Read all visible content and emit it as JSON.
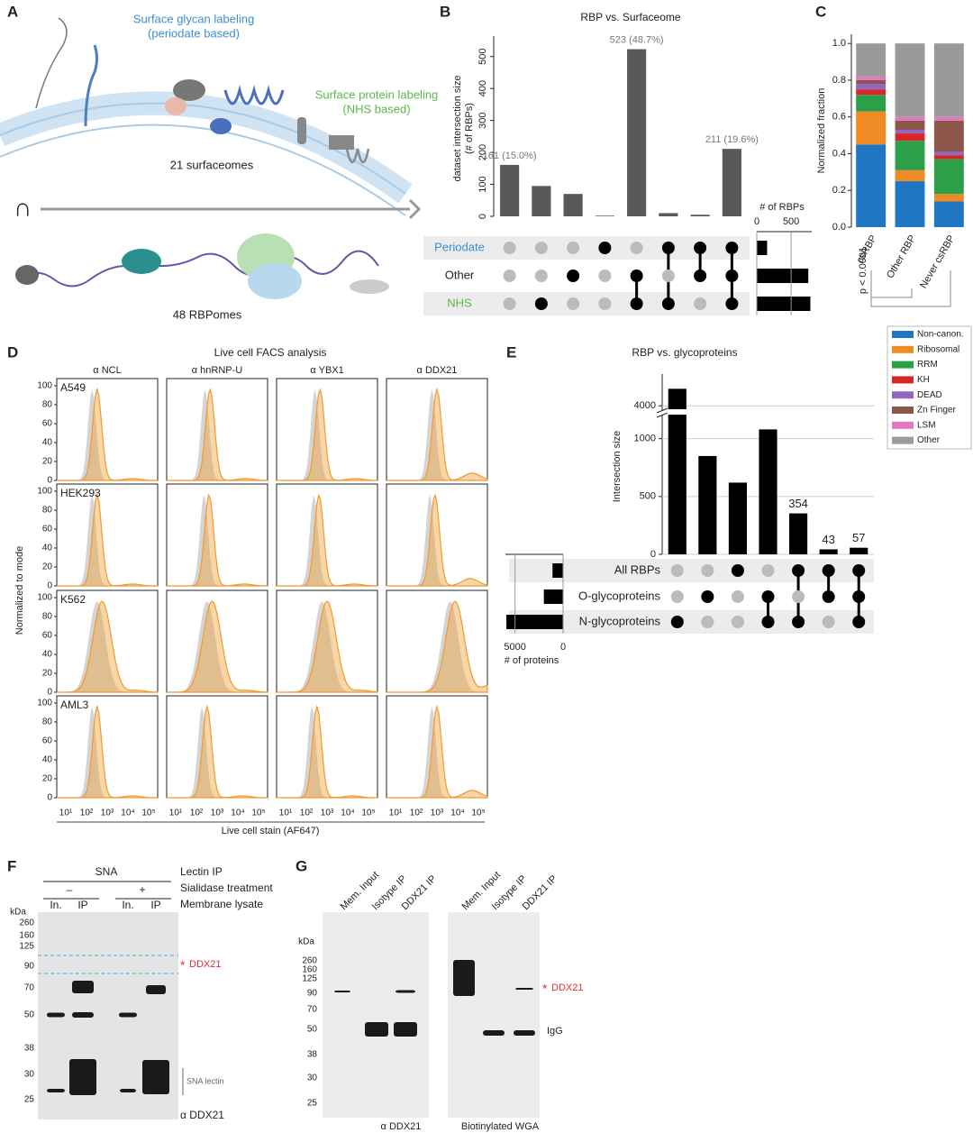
{
  "panel_labels": [
    "A",
    "B",
    "C",
    "D",
    "E",
    "F",
    "G"
  ],
  "panel_a": {
    "glycan_label": [
      "Surface glycan labeling",
      "(periodate based)"
    ],
    "protein_label": [
      "Surface protein labeling",
      "(NHS based)"
    ],
    "surfaceomes": "21 surfaceomes",
    "intersect": "∩",
    "rbpomes": "48 RBPomes"
  },
  "chart_data": [
    {
      "type": "upset",
      "title": "RBP vs. Surfaceome",
      "ylabel": [
        "dataset intersection size",
        "(# of RBPs)"
      ],
      "values": [
        161,
        95,
        70,
        2,
        523,
        10,
        5,
        211
      ],
      "value_labels": [
        "161 (15.0%)",
        null,
        null,
        null,
        "523 (48.7%)",
        null,
        null,
        "211 (19.6%)"
      ],
      "color": "#595959",
      "ylim": [
        0,
        550
      ],
      "yticks": [
        0,
        100,
        200,
        300,
        400,
        500
      ],
      "sets": [
        "Periodate",
        "Other",
        "NHS"
      ],
      "set_colors": [
        "#3b8fd0",
        "#222222",
        "#5bb74a"
      ],
      "set_sizes": [
        150,
        750,
        780
      ],
      "set_xlabel": "# of RBPs",
      "set_xlim": [
        0,
        800
      ],
      "set_xticks": [
        0,
        500
      ],
      "matrix": [
        [
          0,
          0,
          0
        ],
        [
          0,
          0,
          1
        ],
        [
          0,
          1,
          0
        ],
        [
          1,
          0,
          0
        ],
        [
          0,
          1,
          1
        ],
        [
          1,
          0,
          1
        ],
        [
          1,
          1,
          0
        ],
        [
          1,
          1,
          1
        ]
      ]
    },
    {
      "type": "stacked_bar",
      "ylabel": "Normalized fraction",
      "categories": [
        "csRBP",
        "Other RBP",
        "Never csRBP"
      ],
      "series": [
        {
          "name": "Non-canon.",
          "color": "#1f77c4",
          "values": [
            0.45,
            0.25,
            0.14
          ]
        },
        {
          "name": "Ribosomal",
          "color": "#f08a24",
          "values": [
            0.18,
            0.06,
            0.04
          ]
        },
        {
          "name": "RRM",
          "color": "#2ca048",
          "values": [
            0.09,
            0.16,
            0.19
          ]
        },
        {
          "name": "KH",
          "color": "#d62728",
          "values": [
            0.03,
            0.04,
            0.02
          ]
        },
        {
          "name": "DEAD",
          "color": "#9467bd",
          "values": [
            0.03,
            0.02,
            0.02
          ]
        },
        {
          "name": "Zn Finger",
          "color": "#8c564b",
          "values": [
            0.02,
            0.05,
            0.17
          ]
        },
        {
          "name": "LSM",
          "color": "#e377c2",
          "values": [
            0.02,
            0.02,
            0.02
          ]
        },
        {
          "name": "Other",
          "color": "#9a9a9a",
          "values": [
            0.18,
            0.4,
            0.4
          ]
        }
      ],
      "ylim": [
        0,
        1.05
      ],
      "yticks": [
        {
          "value": 0,
          "label": "0.0"
        },
        0.2,
        0.4,
        0.6,
        0.8,
        {
          "value": 1,
          "label": "1.0"
        }
      ],
      "annotation": "p < 0.0001"
    },
    {
      "type": "upset",
      "title": "RBP vs. glycoproteins",
      "ylabel": [
        "Intersection size"
      ],
      "values": [
        4500,
        850,
        620,
        1080,
        354,
        43,
        57
      ],
      "value_labels": [
        null,
        null,
        null,
        null,
        "354",
        "43",
        "57"
      ],
      "color": "#000000",
      "ylim": [
        0,
        4800
      ],
      "axis_break": [
        1200,
        3900
      ],
      "yticks": [
        0,
        500,
        1000,
        4000
      ],
      "sets": [
        "All RBPs",
        "O-glycoproteins",
        "N-glycoproteins"
      ],
      "set_colors": [
        "#222222",
        "#222222",
        "#222222"
      ],
      "set_sizes": [
        1100,
        2000,
        5900
      ],
      "set_xlabel": "# of proteins",
      "set_xlim": [
        0,
        6000
      ],
      "set_xticks": [
        5000,
        0
      ],
      "matrix": [
        [
          0,
          0,
          1
        ],
        [
          0,
          1,
          0
        ],
        [
          1,
          0,
          0
        ],
        [
          0,
          1,
          1
        ],
        [
          1,
          0,
          1
        ],
        [
          1,
          1,
          0
        ],
        [
          1,
          1,
          1
        ]
      ]
    }
  ],
  "panel_d": {
    "title": "Live cell FACS analysis",
    "columns": [
      "α NCL",
      "α hnRNP-U",
      "α YBX1",
      "α DDX21"
    ],
    "rows": [
      "A549",
      "HEK293",
      "K562",
      "AML3"
    ],
    "ylabel": "Normalized to mode",
    "xlabel": "Live cell stain (AF647)",
    "yticks": [
      0,
      20,
      40,
      60,
      80,
      100
    ],
    "xtick_labels": [
      "10¹",
      "10²",
      "10³",
      "10⁴",
      "10⁵"
    ]
  },
  "panel_f": {
    "lectin": "SNA",
    "header": [
      "Lectin IP",
      "Sialidase treatment",
      "Membrane lysate"
    ],
    "treatment": [
      "–",
      "+"
    ],
    "lanes": [
      "In.",
      "IP",
      "In.",
      "IP"
    ],
    "kda": "kDa",
    "markers": [
      260,
      160,
      125,
      90,
      70,
      50,
      38,
      30,
      25
    ],
    "star": "*",
    "target": "DDX21",
    "lectin_note": "SNA lectin",
    "antibody": "α DDX21"
  },
  "panel_g": {
    "lanes": [
      "Mem. Input",
      "Isotype IP",
      "DDX21 IP",
      "Mem. Input",
      "Isotype IP",
      "DDX21 IP"
    ],
    "kda": "kDa",
    "markers": [
      260,
      160,
      125,
      90,
      70,
      50,
      38,
      30,
      25
    ],
    "star": "*",
    "target": "DDX21",
    "igg": "IgG",
    "blots": [
      "α DDX21",
      "Biotinylated WGA"
    ]
  }
}
